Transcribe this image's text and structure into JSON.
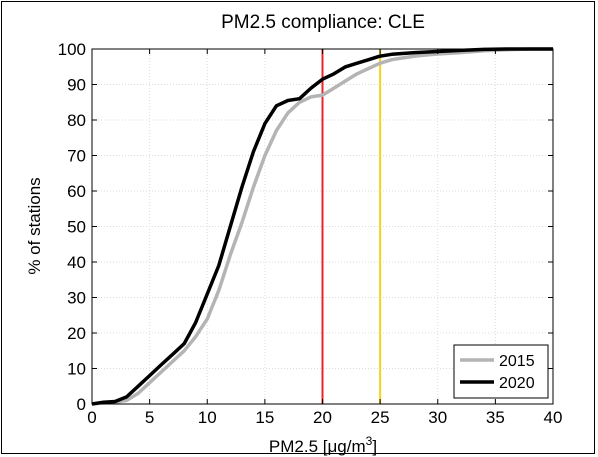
{
  "chart_data": {
    "type": "line",
    "title": "PM2.5 compliance: CLE",
    "xlabel": "PM2.5 [μg/m",
    "xlabel_sup": "3",
    "xlabel_end": "]",
    "ylabel": "% of stations",
    "xlim": [
      0,
      40
    ],
    "ylim": [
      0,
      100
    ],
    "xticks": [
      0,
      5,
      10,
      15,
      20,
      25,
      30,
      35,
      40
    ],
    "yticks": [
      0,
      10,
      20,
      30,
      40,
      50,
      60,
      70,
      80,
      90,
      100
    ],
    "grid": true,
    "legend_position": "bottom-right",
    "vertical_lines": [
      {
        "x": 20,
        "color": "#e8262a"
      },
      {
        "x": 25,
        "color": "#f2d21a"
      }
    ],
    "series": [
      {
        "name": "2015",
        "color": "#b4b4b4",
        "points": [
          [
            0,
            0
          ],
          [
            1,
            0.3
          ],
          [
            2,
            0.5
          ],
          [
            3,
            1
          ],
          [
            4,
            3
          ],
          [
            5,
            6
          ],
          [
            6,
            9
          ],
          [
            7,
            12
          ],
          [
            8,
            15
          ],
          [
            9,
            19
          ],
          [
            10,
            24
          ],
          [
            11,
            32
          ],
          [
            12,
            42
          ],
          [
            13,
            51
          ],
          [
            14,
            61
          ],
          [
            15,
            70
          ],
          [
            16,
            77
          ],
          [
            17,
            82
          ],
          [
            18,
            85
          ],
          [
            19,
            86.5
          ],
          [
            20,
            87
          ],
          [
            21,
            89
          ],
          [
            22,
            91
          ],
          [
            23,
            93
          ],
          [
            24,
            94.5
          ],
          [
            25,
            96
          ],
          [
            26,
            97
          ],
          [
            27,
            97.5
          ],
          [
            28,
            98
          ],
          [
            29,
            98.3
          ],
          [
            30,
            98.6
          ],
          [
            32,
            99
          ],
          [
            34,
            99.5
          ],
          [
            36,
            99.8
          ],
          [
            38,
            100
          ],
          [
            40,
            100
          ]
        ]
      },
      {
        "name": "2020",
        "color": "#000000",
        "points": [
          [
            0,
            0
          ],
          [
            1,
            0.5
          ],
          [
            2,
            0.7
          ],
          [
            3,
            2
          ],
          [
            4,
            5
          ],
          [
            5,
            8
          ],
          [
            6,
            11
          ],
          [
            7,
            14
          ],
          [
            8,
            17
          ],
          [
            8.5,
            20
          ],
          [
            9,
            23
          ],
          [
            10,
            31
          ],
          [
            11,
            39
          ],
          [
            12,
            50
          ],
          [
            13,
            61
          ],
          [
            14,
            71
          ],
          [
            15,
            79
          ],
          [
            16,
            84
          ],
          [
            17,
            85.5
          ],
          [
            18,
            86
          ],
          [
            19,
            89
          ],
          [
            20,
            91.5
          ],
          [
            21,
            93
          ],
          [
            22,
            95
          ],
          [
            23,
            96
          ],
          [
            24,
            97
          ],
          [
            25,
            98
          ],
          [
            26,
            98.5
          ],
          [
            28,
            99
          ],
          [
            30,
            99.3
          ],
          [
            32,
            99.6
          ],
          [
            34,
            99.9
          ],
          [
            36,
            100
          ],
          [
            40,
            100
          ]
        ]
      }
    ]
  }
}
